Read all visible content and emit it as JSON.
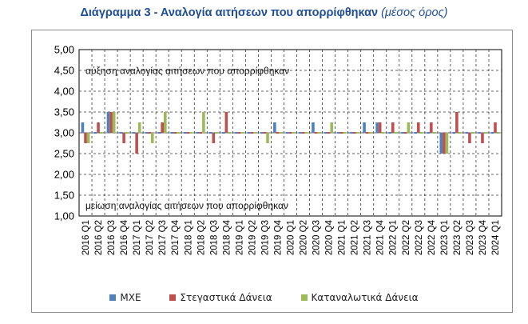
{
  "header": {
    "title": "Διάγραμμα 3 - Αναλογία αιτήσεων που απορρίφθηκαν",
    "subtitle": "(μέσος όρος)"
  },
  "chart_data": {
    "type": "bar",
    "ylim": [
      1.0,
      5.0
    ],
    "baseline": 3.0,
    "yticks": [
      "1,00",
      "1,50",
      "2,00",
      "2,50",
      "3,00",
      "3,50",
      "4,00",
      "4,50",
      "5,00"
    ],
    "ytick_values": [
      1.0,
      1.5,
      2.0,
      2.5,
      3.0,
      3.5,
      4.0,
      4.5,
      5.0
    ],
    "grid": "dashed vertical and horizontal",
    "legend_position": "bottom",
    "annotations": {
      "top": "αύξηση αναλογίας αιτήσεων που απορρίφθηκαν",
      "bottom": "μείωση αναλογίας αιτήσεων που απορρίφθηκαν"
    },
    "categories": [
      "2016 Q1",
      "2016 Q2",
      "2016 Q3",
      "2016 Q4",
      "2017 Q1",
      "2017 Q2",
      "2017 Q3",
      "2017 Q4",
      "2018 Q1",
      "2018 Q2",
      "2018 Q3",
      "2018 Q4",
      "2019 Q1",
      "2019 Q2",
      "2019 Q3",
      "2019 Q4",
      "2020 Q1",
      "2020 Q2",
      "2020 Q3",
      "2020 Q4",
      "2021 Q1",
      "2021 Q2",
      "2021 Q3",
      "2021 Q4",
      "2022 Q1",
      "2022 Q2",
      "2022 Q3",
      "2022 Q4",
      "2023 Q1",
      "2023 Q2",
      "2023 Q3",
      "2023 Q4",
      "2024 Q1"
    ],
    "series": [
      {
        "name": "ΜΧΕ",
        "color": "#4f81bd",
        "values": [
          3.25,
          3.0,
          3.5,
          3.0,
          3.0,
          3.0,
          3.0,
          3.0,
          3.0,
          3.0,
          3.0,
          3.0,
          3.0,
          3.0,
          3.0,
          3.25,
          3.0,
          3.0,
          3.25,
          3.0,
          3.0,
          3.0,
          3.25,
          3.25,
          3.0,
          3.0,
          3.0,
          3.0,
          2.5,
          3.0,
          3.0,
          3.0,
          3.0
        ]
      },
      {
        "name": "Στεγαστικά Δάνεια",
        "color": "#c0504d",
        "values": [
          2.75,
          3.25,
          3.5,
          2.75,
          2.5,
          3.0,
          3.25,
          3.0,
          3.0,
          3.0,
          2.75,
          3.5,
          3.0,
          3.0,
          3.0,
          3.0,
          3.0,
          3.0,
          3.0,
          3.0,
          3.0,
          3.0,
          3.0,
          3.25,
          3.25,
          3.0,
          3.25,
          3.25,
          2.5,
          3.5,
          2.75,
          2.75,
          3.25
        ]
      },
      {
        "name": "Καταναλωτικά Δάνεια",
        "color": "#9bbb59",
        "values": [
          2.75,
          3.0,
          3.5,
          3.0,
          3.25,
          2.75,
          3.5,
          3.0,
          3.0,
          3.5,
          3.0,
          3.0,
          3.0,
          3.0,
          2.75,
          3.0,
          3.0,
          3.0,
          3.0,
          3.25,
          3.0,
          3.0,
          3.0,
          3.0,
          3.0,
          3.25,
          3.0,
          3.0,
          2.5,
          3.0,
          3.0,
          3.0,
          3.0
        ]
      }
    ]
  }
}
